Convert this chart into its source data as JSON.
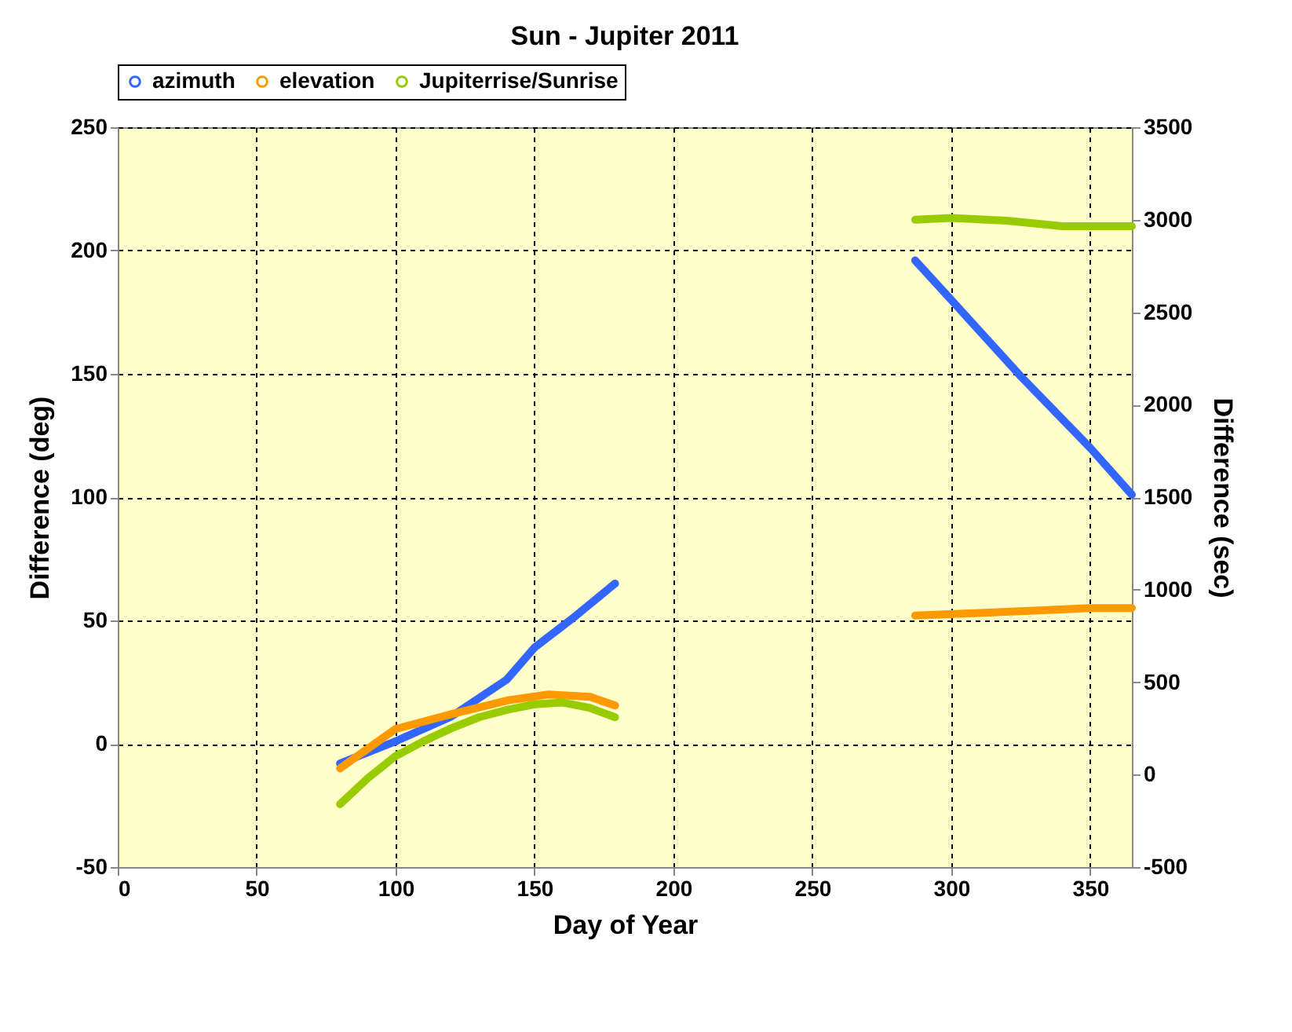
{
  "chart_data": {
    "type": "line",
    "title": "Sun - Jupiter 2011",
    "xlabel": "Day of Year",
    "ylabel": "Difference (deg)",
    "y2label": "Difference (sec)",
    "xlim": [
      0,
      365
    ],
    "xticks": [
      0,
      50,
      100,
      150,
      200,
      250,
      300,
      350
    ],
    "ylim": [
      -50,
      250
    ],
    "yticks": [
      -50,
      0,
      50,
      100,
      150,
      200,
      250
    ],
    "y2lim": [
      -500,
      3500
    ],
    "y2ticks": [
      -500,
      0,
      500,
      1000,
      1500,
      2000,
      2500,
      3000,
      3500
    ],
    "grid": true,
    "legend": "top",
    "marker": "none",
    "line_style": "solid",
    "series": [
      {
        "name": "azimuth",
        "color": "#3366ff",
        "x": [
          80,
          100,
          120,
          140,
          150,
          165,
          179,
          230,
          287,
          300,
          325,
          350,
          365
        ],
        "values": [
          -8,
          1,
          11,
          26,
          39,
          52,
          65,
          null,
          196,
          180,
          149,
          120,
          101
        ]
      },
      {
        "name": "elevation",
        "color": "#ff9900",
        "x": [
          80,
          100,
          120,
          140,
          155,
          170,
          179,
          230,
          287,
          310,
          330,
          350,
          365
        ],
        "values": [
          -10,
          6,
          12,
          17.5,
          20,
          19,
          15.5,
          null,
          52,
          53,
          54,
          55,
          55
        ]
      },
      {
        "name": "Jupiterrise/Sunrise",
        "color": "#99cc00",
        "axis": "y2",
        "x": [
          80,
          90,
          100,
          110,
          120,
          130,
          140,
          150,
          160,
          170,
          179,
          230,
          287,
          300,
          320,
          340,
          365
        ],
        "values": [
          -160,
          -20,
          100,
          180,
          250,
          310,
          350,
          380,
          390,
          360,
          310,
          null,
          3000,
          3010,
          2995,
          2965,
          2965
        ]
      }
    ]
  }
}
